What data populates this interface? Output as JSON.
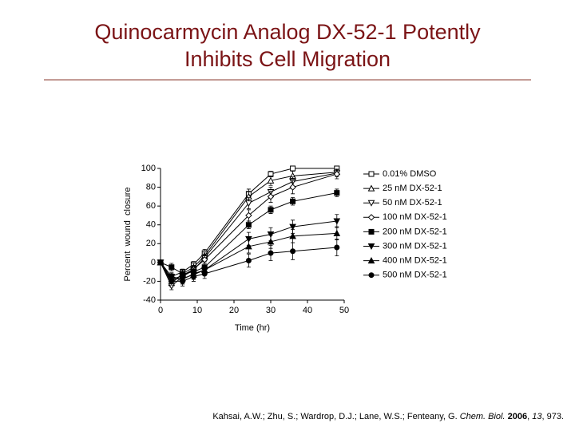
{
  "slide": {
    "title_lines": [
      "Quinocarmycin Analog DX-52-1 Potently",
      "Inhibits Cell Migration"
    ],
    "citation": [
      {
        "text": "Kahsai, A.W.; Zhu, S.; Wardrop, D.J.; Lane, W.S.; Fenteany, G. ",
        "style": "normal"
      },
      {
        "text": "Chem. Biol.",
        "style": "italic"
      },
      {
        "text": " ",
        "style": "normal"
      },
      {
        "text": "2006",
        "style": "bold"
      },
      {
        "text": ", ",
        "style": "normal"
      },
      {
        "text": "13",
        "style": "italic"
      },
      {
        "text": ", 973.",
        "style": "normal"
      }
    ]
  },
  "chart_data": {
    "type": "line",
    "x_label": "Time (hr)",
    "y_label": "Percent  wound  closure",
    "x": [
      0,
      3,
      6,
      9,
      12,
      24,
      30,
      36,
      48
    ],
    "xlim": [
      0,
      50
    ],
    "xticks": [
      0,
      10,
      20,
      30,
      40,
      50
    ],
    "ylim": [
      -40,
      100
    ],
    "yticks": [
      -40,
      -20,
      0,
      20,
      40,
      60,
      80,
      100
    ],
    "series": [
      {
        "name": "0.01% DMSO",
        "color": "#000000",
        "marker": "square",
        "filled": false,
        "values": [
          0,
          -15,
          -10,
          -2,
          10,
          73,
          94,
          100,
          100
        ],
        "errors": [
          2,
          3,
          3,
          3,
          4,
          5,
          3,
          2,
          2
        ]
      },
      {
        "name": "25 nM DX-52-1",
        "color": "#000000",
        "marker": "triangle-up",
        "filled": false,
        "values": [
          0,
          -22,
          -12,
          -5,
          7,
          70,
          87,
          92,
          96
        ],
        "errors": [
          2,
          4,
          4,
          4,
          4,
          5,
          5,
          5,
          3
        ]
      },
      {
        "name": "50 nM DX-52-1",
        "color": "#000000",
        "marker": "triangle-down",
        "filled": false,
        "values": [
          0,
          -25,
          -15,
          -8,
          5,
          63,
          75,
          86,
          95
        ],
        "errors": [
          2,
          4,
          4,
          4,
          4,
          6,
          5,
          5,
          4
        ]
      },
      {
        "name": "100 nM DX-52-1",
        "color": "#000000",
        "marker": "diamond",
        "filled": false,
        "values": [
          0,
          -18,
          -14,
          -7,
          3,
          50,
          70,
          80,
          94
        ],
        "errors": [
          2,
          4,
          4,
          4,
          4,
          6,
          6,
          7,
          5
        ]
      },
      {
        "name": "200 nM DX-52-1",
        "color": "#000000",
        "marker": "square",
        "filled": true,
        "values": [
          0,
          -5,
          -12,
          -10,
          -5,
          40,
          56,
          65,
          74
        ],
        "errors": [
          2,
          4,
          4,
          4,
          4,
          4,
          4,
          4,
          4
        ]
      },
      {
        "name": "300 nM DX-52-1",
        "color": "#000000",
        "marker": "triangle-down",
        "filled": true,
        "values": [
          0,
          -15,
          -18,
          -12,
          -8,
          25,
          30,
          38,
          44
        ],
        "errors": [
          2,
          4,
          5,
          5,
          5,
          7,
          7,
          7,
          7
        ]
      },
      {
        "name": "400 nM DX-52-1",
        "color": "#000000",
        "marker": "triangle-up",
        "filled": true,
        "values": [
          0,
          -18,
          -17,
          -13,
          -8,
          17,
          22,
          28,
          31
        ],
        "errors": [
          2,
          4,
          5,
          5,
          5,
          7,
          7,
          7,
          7
        ]
      },
      {
        "name": "500 nM DX-52-1",
        "color": "#000000",
        "marker": "circle",
        "filled": true,
        "values": [
          0,
          -20,
          -20,
          -15,
          -12,
          2,
          10,
          12,
          16
        ],
        "errors": [
          2,
          4,
          5,
          5,
          5,
          7,
          8,
          9,
          9
        ]
      }
    ]
  }
}
